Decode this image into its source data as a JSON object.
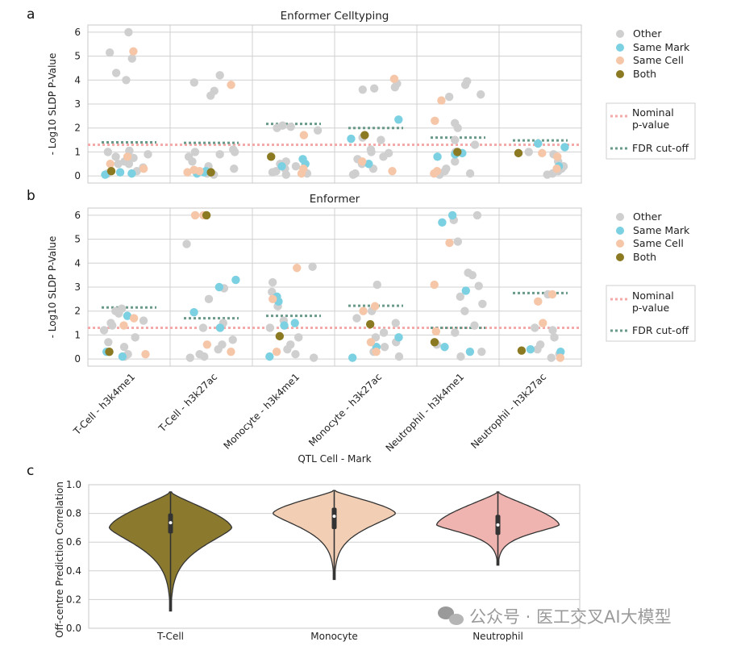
{
  "panel_labels": [
    "a",
    "b",
    "c"
  ],
  "watermark": "公众号 · 医工交叉AI大模型",
  "colors": {
    "other": "#cfcfcf",
    "same_mark": "#7bd0e2",
    "same_cell": "#f6c6a8",
    "both": "#8b7a22",
    "nominal": "#f4aaa8",
    "fdr": "#6a9a8a",
    "violin_tcell": "#8b7a2e",
    "violin_monocyte": "#f2ceb4",
    "violin_neutrophil": "#f0b4b0"
  },
  "legend": {
    "points": [
      "Other",
      "Same Mark",
      "Same Cell",
      "Both"
    ],
    "nominal_line1": "Nominal",
    "nominal_line2": "p-value",
    "fdr": "FDR cut-off"
  },
  "chart_data": [
    {
      "type": "scatter",
      "title": "Enformer Celltyping",
      "ylabel": "- Log10 SLDP P-Value",
      "ylim": [
        -0.3,
        6.3
      ],
      "yticks": [
        "0",
        "1",
        "2",
        "3",
        "4",
        "5",
        "6"
      ],
      "categories": [
        "T-Cell - h3k4me1",
        "T-Cell - h3k27ac",
        "Monocyte - h3k4me1",
        "Monocyte - h3k27ac",
        "Neutrophil - h3k4me1",
        "Neutrophil - h3k27ac"
      ],
      "nominal_line": 1.3,
      "fdr_cutoff": [
        1.4,
        1.38,
        2.17,
        2.0,
        1.6,
        1.48
      ],
      "series": [
        {
          "name": "Other",
          "points": [
            [
              0,
              6.0
            ],
            [
              0,
              4.9
            ],
            [
              0,
              5.15
            ],
            [
              0,
              4.3
            ],
            [
              0,
              4.0
            ],
            [
              0,
              1.05
            ],
            [
              0,
              1.0
            ],
            [
              0,
              0.9
            ],
            [
              0,
              0.75
            ],
            [
              0,
              0.6
            ],
            [
              0,
              0.5
            ],
            [
              0,
              0.35
            ],
            [
              0,
              0.2
            ],
            [
              0,
              0.1
            ],
            [
              0,
              0.5
            ],
            [
              0,
              0.8
            ],
            [
              1,
              4.2
            ],
            [
              1,
              3.9
            ],
            [
              1,
              3.55
            ],
            [
              1,
              3.35
            ],
            [
              1,
              1.0
            ],
            [
              1,
              0.8
            ],
            [
              1,
              1.1
            ],
            [
              1,
              1.0
            ],
            [
              1,
              0.6
            ],
            [
              1,
              0.4
            ],
            [
              1,
              0.3
            ],
            [
              1,
              0.2
            ],
            [
              1,
              0.1
            ],
            [
              1,
              0.05
            ],
            [
              1,
              0.9
            ],
            [
              2,
              2.1
            ],
            [
              2,
              2.0
            ],
            [
              2,
              1.9
            ],
            [
              2,
              2.05
            ],
            [
              2,
              0.5
            ],
            [
              2,
              0.4
            ],
            [
              2,
              0.3
            ],
            [
              2,
              0.2
            ],
            [
              2,
              0.1
            ],
            [
              2,
              0.05
            ],
            [
              2,
              0.6
            ],
            [
              2,
              0.15
            ],
            [
              3,
              3.85
            ],
            [
              3,
              3.6
            ],
            [
              3,
              3.7
            ],
            [
              3,
              3.65
            ],
            [
              3,
              1.6
            ],
            [
              3,
              1.5
            ],
            [
              3,
              1.1
            ],
            [
              3,
              0.95
            ],
            [
              3,
              0.8
            ],
            [
              3,
              0.7
            ],
            [
              3,
              0.5
            ],
            [
              3,
              0.3
            ],
            [
              3,
              0.1
            ],
            [
              3,
              0.05
            ],
            [
              3,
              1.0
            ],
            [
              4,
              3.95
            ],
            [
              4,
              3.8
            ],
            [
              4,
              3.4
            ],
            [
              4,
              3.3
            ],
            [
              4,
              2.2
            ],
            [
              4,
              2.0
            ],
            [
              4,
              1.5
            ],
            [
              4,
              1.3
            ],
            [
              4,
              1.0
            ],
            [
              4,
              0.6
            ],
            [
              4,
              0.3
            ],
            [
              4,
              0.2
            ],
            [
              4,
              0.1
            ],
            [
              4,
              0.05
            ],
            [
              5,
              1.0
            ],
            [
              5,
              0.9
            ],
            [
              5,
              0.6
            ],
            [
              5,
              0.4
            ],
            [
              5,
              0.3
            ],
            [
              5,
              0.2
            ],
            [
              5,
              0.1
            ],
            [
              5,
              0.05
            ]
          ]
        },
        {
          "name": "Same Mark",
          "points": [
            [
              0,
              0.1
            ],
            [
              0,
              0.05
            ],
            [
              0,
              0.15
            ],
            [
              1,
              0.15
            ],
            [
              1,
              0.1
            ],
            [
              1,
              0.2
            ],
            [
              2,
              0.7
            ],
            [
              2,
              0.5
            ],
            [
              2,
              0.4
            ],
            [
              3,
              2.35
            ],
            [
              3,
              1.55
            ],
            [
              3,
              0.5
            ],
            [
              4,
              0.95
            ],
            [
              4,
              0.9
            ],
            [
              4,
              0.8
            ],
            [
              5,
              1.2
            ],
            [
              5,
              1.35
            ],
            [
              5,
              0.4
            ]
          ]
        },
        {
          "name": "Same Cell",
          "points": [
            [
              0,
              5.2
            ],
            [
              0,
              0.8
            ],
            [
              0,
              0.5
            ],
            [
              0,
              0.3
            ],
            [
              1,
              3.8
            ],
            [
              1,
              0.2
            ],
            [
              1,
              0.15
            ],
            [
              1,
              0.25
            ],
            [
              2,
              1.7
            ],
            [
              2,
              0.3
            ],
            [
              2,
              0.1
            ],
            [
              3,
              4.05
            ],
            [
              3,
              0.6
            ],
            [
              3,
              0.2
            ],
            [
              4,
              3.15
            ],
            [
              4,
              2.3
            ],
            [
              4,
              0.2
            ],
            [
              4,
              0.1
            ],
            [
              5,
              0.95
            ],
            [
              5,
              0.3
            ],
            [
              5,
              0.8
            ]
          ]
        },
        {
          "name": "Both",
          "points": [
            [
              0,
              0.2
            ],
            [
              1,
              0.15
            ],
            [
              2,
              0.8
            ],
            [
              3,
              1.7
            ],
            [
              4,
              1.0
            ],
            [
              5,
              0.95
            ]
          ]
        }
      ]
    },
    {
      "type": "scatter",
      "title": "Enformer",
      "ylabel": "- Log10 SLDP P-Value",
      "xlabel": "QTL Cell - Mark",
      "ylim": [
        -0.3,
        6.3
      ],
      "yticks": [
        "0",
        "1",
        "2",
        "3",
        "4",
        "5",
        "6"
      ],
      "categories": [
        "T-Cell - h3k4me1",
        "T-Cell - h3k27ac",
        "Monocyte - h3k4me1",
        "Monocyte - h3k27ac",
        "Neutrophil - h3k4me1",
        "Neutrophil - h3k27ac"
      ],
      "nominal_line": 1.3,
      "fdr_cutoff": [
        2.15,
        1.7,
        1.8,
        2.22,
        1.3,
        2.75
      ],
      "series": [
        {
          "name": "Other",
          "points": [
            [
              0,
              2.1
            ],
            [
              0,
              2.0
            ],
            [
              0,
              1.9
            ],
            [
              0,
              1.6
            ],
            [
              0,
              1.5
            ],
            [
              0,
              1.4
            ],
            [
              0,
              1.2
            ],
            [
              0,
              0.9
            ],
            [
              0,
              0.7
            ],
            [
              0,
              0.5
            ],
            [
              0,
              0.3
            ],
            [
              0,
              0.2
            ],
            [
              0,
              0.1
            ],
            [
              1,
              4.8
            ],
            [
              1,
              2.95
            ],
            [
              1,
              2.5
            ],
            [
              1,
              1.5
            ],
            [
              1,
              1.3
            ],
            [
              1,
              0.8
            ],
            [
              1,
              0.6
            ],
            [
              1,
              0.4
            ],
            [
              1,
              0.2
            ],
            [
              1,
              0.1
            ],
            [
              1,
              0.05
            ],
            [
              2,
              3.85
            ],
            [
              2,
              3.2
            ],
            [
              2,
              2.8
            ],
            [
              2,
              2.2
            ],
            [
              2,
              1.6
            ],
            [
              2,
              1.3
            ],
            [
              2,
              0.9
            ],
            [
              2,
              0.6
            ],
            [
              2,
              0.4
            ],
            [
              2,
              0.2
            ],
            [
              2,
              0.05
            ],
            [
              3,
              3.1
            ],
            [
              3,
              2.0
            ],
            [
              3,
              1.7
            ],
            [
              3,
              1.5
            ],
            [
              3,
              1.1
            ],
            [
              3,
              0.9
            ],
            [
              3,
              0.7
            ],
            [
              3,
              0.5
            ],
            [
              3,
              0.3
            ],
            [
              3,
              0.1
            ],
            [
              4,
              6.0
            ],
            [
              4,
              5.8
            ],
            [
              4,
              4.9
            ],
            [
              4,
              3.6
            ],
            [
              4,
              3.5
            ],
            [
              4,
              3.05
            ],
            [
              4,
              2.6
            ],
            [
              4,
              2.3
            ],
            [
              4,
              2.0
            ],
            [
              4,
              1.4
            ],
            [
              4,
              1.1
            ],
            [
              4,
              0.6
            ],
            [
              4,
              0.3
            ],
            [
              4,
              0.1
            ],
            [
              5,
              2.7
            ],
            [
              5,
              1.3
            ],
            [
              5,
              1.2
            ],
            [
              5,
              0.9
            ],
            [
              5,
              0.6
            ],
            [
              5,
              0.4
            ],
            [
              5,
              0.2
            ],
            [
              5,
              0.05
            ]
          ]
        },
        {
          "name": "Same Mark",
          "points": [
            [
              0,
              0.3
            ],
            [
              0,
              0.1
            ],
            [
              0,
              1.8
            ],
            [
              1,
              3.3
            ],
            [
              1,
              3.0
            ],
            [
              1,
              1.95
            ],
            [
              1,
              1.3
            ],
            [
              2,
              2.6
            ],
            [
              2,
              2.4
            ],
            [
              2,
              1.5
            ],
            [
              2,
              1.4
            ],
            [
              2,
              0.1
            ],
            [
              3,
              0.9
            ],
            [
              3,
              0.5
            ],
            [
              3,
              0.05
            ],
            [
              4,
              6.0
            ],
            [
              4,
              5.7
            ],
            [
              4,
              2.85
            ],
            [
              4,
              0.5
            ],
            [
              4,
              0.3
            ],
            [
              5,
              0.4
            ],
            [
              5,
              0.3
            ]
          ]
        },
        {
          "name": "Same Cell",
          "points": [
            [
              0,
              1.7
            ],
            [
              0,
              1.4
            ],
            [
              0,
              0.2
            ],
            [
              1,
              6.0
            ],
            [
              1,
              6.0
            ],
            [
              1,
              0.6
            ],
            [
              1,
              0.3
            ],
            [
              2,
              3.8
            ],
            [
              2,
              2.5
            ],
            [
              2,
              0.3
            ],
            [
              3,
              2.2
            ],
            [
              3,
              2.0
            ],
            [
              3,
              0.7
            ],
            [
              3,
              0.3
            ],
            [
              4,
              4.85
            ],
            [
              4,
              3.1
            ],
            [
              4,
              1.15
            ],
            [
              5,
              2.7
            ],
            [
              5,
              2.4
            ],
            [
              5,
              1.5
            ],
            [
              5,
              0.05
            ]
          ]
        },
        {
          "name": "Both",
          "points": [
            [
              0,
              0.3
            ],
            [
              1,
              6.0
            ],
            [
              2,
              0.95
            ],
            [
              3,
              1.45
            ],
            [
              4,
              0.7
            ],
            [
              5,
              0.35
            ]
          ]
        }
      ]
    },
    {
      "type": "violin",
      "ylabel": "Off-centre Prediction Correlation",
      "ylim": [
        0.0,
        1.0
      ],
      "yticks": [
        "0.0",
        "0.2",
        "0.4",
        "0.6",
        "0.8",
        "1.0"
      ],
      "categories": [
        "T-Cell",
        "Monocyte",
        "Neutrophil"
      ],
      "series": [
        {
          "name": "T-Cell",
          "min": 0.12,
          "max": 0.95,
          "q1": 0.66,
          "median": 0.735,
          "q3": 0.8,
          "mode": 0.7
        },
        {
          "name": "Monocyte",
          "min": 0.34,
          "max": 0.96,
          "q1": 0.69,
          "median": 0.78,
          "q3": 0.84,
          "mode": 0.8
        },
        {
          "name": "Neutrophil",
          "min": 0.44,
          "max": 0.95,
          "q1": 0.65,
          "median": 0.72,
          "q3": 0.79,
          "mode": 0.72
        }
      ]
    }
  ]
}
